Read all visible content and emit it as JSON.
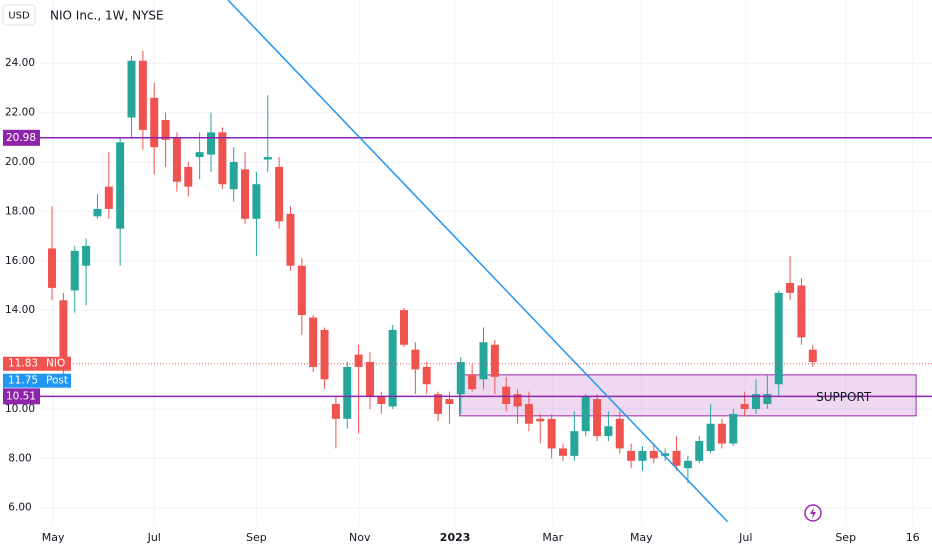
{
  "chart_data": {
    "type": "candlestick",
    "title": "NIO Inc., 1W, NYSE",
    "currency": "USD",
    "up_color": "#26a69a",
    "down_color": "#ef5350",
    "grid": true,
    "x": [
      0,
      1,
      2,
      3,
      4,
      5,
      6,
      7,
      8,
      9,
      10,
      11,
      12,
      13,
      14,
      15,
      16,
      17,
      18,
      19,
      20,
      21,
      22,
      23,
      24,
      25,
      26,
      27,
      28,
      29,
      30,
      31,
      32,
      33,
      34,
      35,
      36,
      37,
      38,
      39,
      40,
      41,
      42,
      43,
      44,
      45,
      46,
      47,
      48,
      49,
      50,
      51,
      52,
      53,
      54,
      55,
      56,
      57,
      58,
      59,
      60,
      61,
      62,
      63,
      64,
      65,
      66,
      67
    ],
    "open": [
      16.5,
      14.4,
      14.8,
      15.8,
      17.8,
      19.0,
      17.3,
      21.8,
      24.1,
      22.6,
      21.7,
      21.0,
      19.8,
      20.2,
      20.3,
      21.2,
      18.9,
      19.7,
      17.7,
      20.1,
      19.8,
      17.9,
      15.8,
      13.7,
      13.2,
      10.2,
      9.6,
      12.2,
      11.9,
      10.5,
      10.1,
      14.0,
      12.4,
      11.7,
      10.6,
      10.4,
      10.6,
      11.4,
      11.2,
      12.6,
      10.9,
      10.6,
      10.2,
      9.6,
      9.6,
      8.4,
      8.1,
      9.1,
      10.4,
      8.9,
      9.6,
      8.3,
      7.9,
      8.3,
      8.1,
      8.3,
      7.6,
      7.9,
      8.3,
      9.4,
      8.6,
      10.2,
      10.0,
      10.2,
      11.0,
      15.1,
      15.0,
      12.4
    ],
    "high": [
      18.2,
      14.7,
      16.6,
      16.9,
      18.7,
      20.4,
      21.0,
      24.3,
      24.5,
      23.2,
      22.0,
      21.2,
      20.0,
      21.2,
      22.0,
      21.4,
      20.6,
      20.4,
      19.6,
      22.7,
      20.2,
      18.2,
      16.1,
      13.8,
      13.3,
      10.5,
      11.9,
      12.6,
      12.3,
      10.7,
      13.4,
      14.1,
      12.7,
      11.9,
      10.7,
      10.7,
      12.1,
      11.8,
      13.3,
      12.8,
      11.3,
      10.8,
      10.7,
      9.8,
      9.8,
      8.6,
      9.9,
      10.6,
      10.6,
      9.9,
      9.9,
      8.6,
      8.5,
      8.6,
      8.4,
      8.9,
      8.1,
      8.9,
      10.2,
      9.6,
      10.0,
      10.7,
      11.2,
      11.4,
      14.8,
      16.2,
      15.3,
      12.6
    ],
    "low": [
      14.4,
      11.4,
      13.9,
      14.2,
      17.7,
      17.7,
      15.8,
      21.0,
      20.5,
      19.5,
      19.8,
      18.8,
      18.6,
      19.3,
      19.6,
      18.9,
      18.4,
      17.5,
      16.2,
      19.6,
      17.3,
      15.6,
      13.0,
      11.5,
      10.8,
      8.4,
      9.2,
      9.0,
      10.0,
      9.8,
      10.0,
      12.5,
      10.6,
      10.6,
      9.5,
      9.4,
      9.8,
      10.7,
      10.8,
      10.6,
      9.9,
      9.4,
      9.1,
      8.6,
      8.0,
      7.9,
      7.9,
      8.9,
      8.7,
      8.7,
      8.2,
      7.6,
      7.5,
      7.8,
      7.9,
      7.5,
      7.0,
      7.8,
      8.2,
      8.4,
      8.5,
      9.7,
      9.8,
      10.0,
      10.5,
      14.4,
      12.6,
      11.7
    ],
    "close": [
      14.9,
      12.0,
      16.4,
      16.6,
      18.1,
      18.1,
      20.8,
      24.1,
      21.3,
      20.6,
      20.9,
      19.2,
      19.0,
      20.4,
      21.2,
      19.1,
      20.0,
      17.7,
      19.1,
      20.2,
      17.6,
      15.8,
      13.8,
      11.7,
      11.2,
      9.6,
      11.7,
      11.7,
      10.5,
      10.2,
      13.2,
      12.6,
      11.6,
      11.0,
      9.8,
      10.2,
      11.9,
      10.8,
      12.7,
      11.3,
      10.2,
      10.1,
      9.4,
      9.5,
      8.4,
      8.1,
      9.1,
      10.5,
      8.9,
      9.3,
      8.4,
      7.9,
      8.3,
      8.0,
      8.2,
      7.7,
      7.9,
      8.7,
      9.4,
      8.6,
      9.8,
      10.0,
      10.6,
      10.6,
      14.7,
      14.7,
      12.9,
      11.9
    ],
    "xlim": [
      -1.06,
      77.5
    ],
    "ylim": [
      5.3,
      26.56
    ],
    "xticks": [
      {
        "value": 0.1,
        "label": "May"
      },
      {
        "value": 9.0,
        "label": "Jul"
      },
      {
        "value": 18.0,
        "label": "Sep"
      },
      {
        "value": 27.1,
        "label": "Nov"
      },
      {
        "value": 35.5,
        "label": "2023"
      },
      {
        "value": 44.1,
        "label": "Mar"
      },
      {
        "value": 51.9,
        "label": "May"
      },
      {
        "value": 61.1,
        "label": "Jul"
      },
      {
        "value": 69.9,
        "label": "Sep"
      },
      {
        "value": 75.8,
        "label": "16"
      }
    ],
    "yticks": [
      {
        "value": 6,
        "label": "6.00"
      },
      {
        "value": 8,
        "label": "8.00"
      },
      {
        "value": 10,
        "label": "10.00"
      },
      {
        "value": 14,
        "label": "14.00"
      },
      {
        "value": 16,
        "label": "16.00"
      },
      {
        "value": 18,
        "label": "18.00"
      },
      {
        "value": 20,
        "label": "20.00"
      },
      {
        "value": 22,
        "label": "22.00"
      },
      {
        "value": 24,
        "label": "24.00"
      }
    ],
    "levels": [
      {
        "value": 20.98,
        "color": "#8e24aa"
      },
      {
        "value": 10.51,
        "color": "#8e24aa"
      }
    ],
    "price_tags": [
      {
        "label": "NIO",
        "value": 11.83,
        "color": "#ef5350"
      },
      {
        "label": "Post",
        "value": 11.75,
        "color": "#2196f3"
      }
    ],
    "zone": {
      "label": "SUPPORT",
      "x": [
        35.9,
        76.1
      ],
      "y": [
        9.72,
        11.38
      ],
      "color": "#ce93d8"
    },
    "trendline": {
      "x": [
        15.5,
        59.5
      ],
      "y": [
        26.56,
        5.43
      ],
      "color": "#2196f3"
    }
  }
}
